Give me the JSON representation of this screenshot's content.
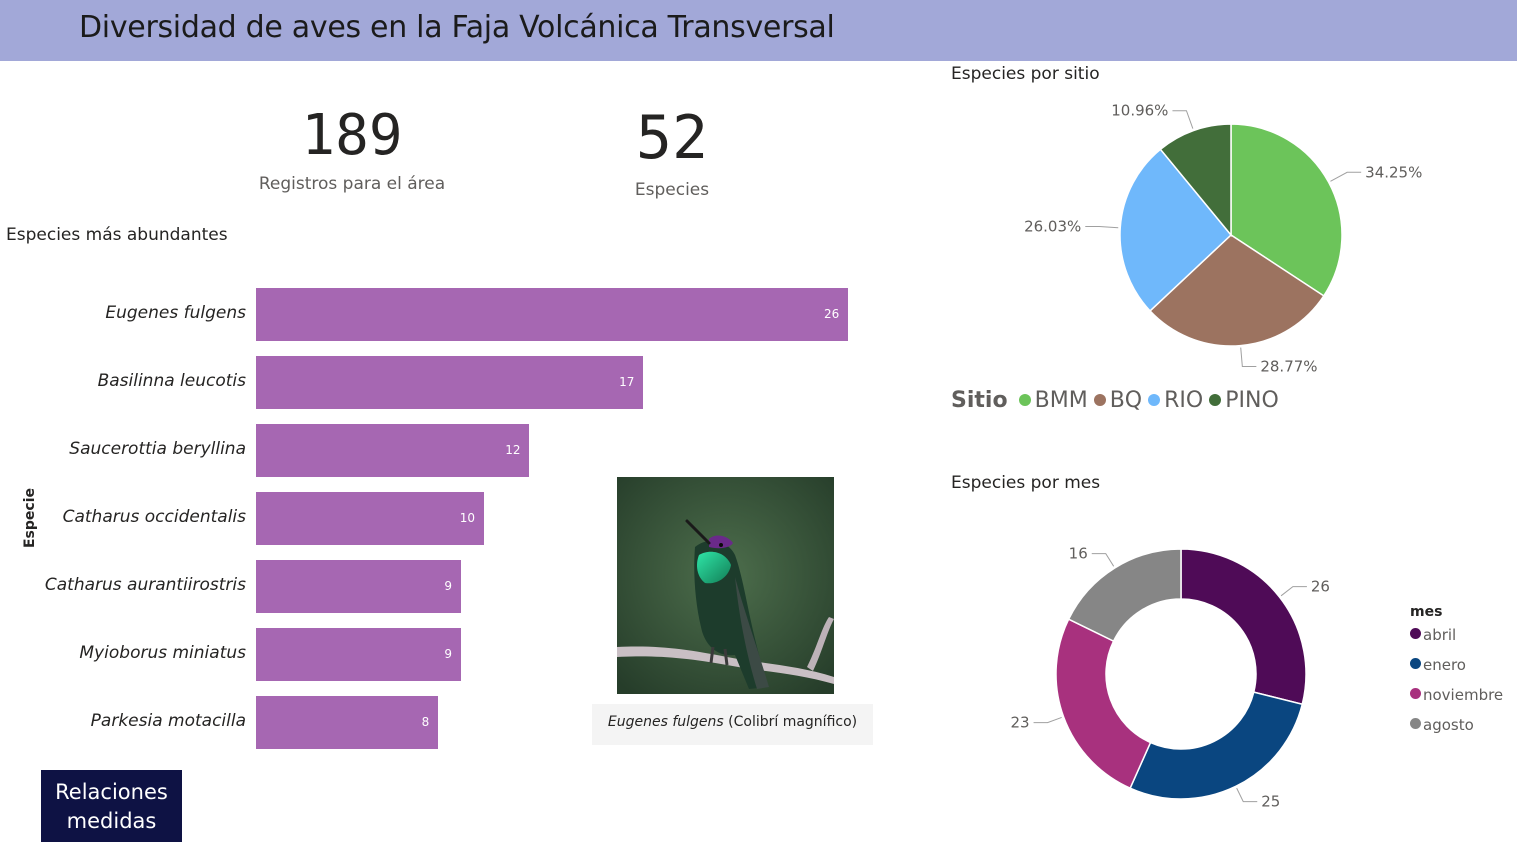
{
  "header": {
    "title": "Diversidad de aves en la Faja Volcánica Transversal"
  },
  "kpis": [
    {
      "value": "189",
      "label": "Registros para el área"
    },
    {
      "value": "52",
      "label": "Especies"
    }
  ],
  "bar_section": {
    "title": "Especies más abundantes",
    "axis_title": "Especie"
  },
  "photo": {
    "caption_italic": "Eugenes fulgens",
    "caption_rest": " (Colibrí magnífico)"
  },
  "button": {
    "label_line1": "Relaciones",
    "label_line2": "medidas"
  },
  "pie_section": {
    "title": "Especies por sitio",
    "legend_title": "Sitio"
  },
  "donut_section": {
    "title": "Especies por mes",
    "legend_title": "mes"
  },
  "chart_data": [
    {
      "type": "bar",
      "orientation": "horizontal",
      "title": "Especies más abundantes",
      "ylabel": "Especie",
      "categories": [
        "Eugenes fulgens",
        "Basilinna leucotis",
        "Saucerottia beryllina",
        "Catharus occidentalis",
        "Catharus aurantiirostris",
        "Myioborus miniatus",
        "Parkesia motacilla"
      ],
      "values": [
        26,
        17,
        12,
        10,
        9,
        9,
        8
      ],
      "color": "#a667b2"
    },
    {
      "type": "pie",
      "title": "Especies por sitio",
      "legend_title": "Sitio",
      "legend_position": "bottom",
      "categories": [
        "BMM",
        "BQ",
        "RIO",
        "PINO"
      ],
      "values": [
        34.25,
        28.77,
        26.03,
        10.96
      ],
      "labels": [
        "34.25%",
        "28.77%",
        "26.03%",
        "10.96%"
      ],
      "colors": [
        "#6cc45a",
        "#9c7360",
        "#6fb8fb",
        "#426e3a"
      ]
    },
    {
      "type": "pie",
      "subtype": "donut",
      "title": "Especies por mes",
      "legend_title": "mes",
      "legend_position": "right",
      "categories": [
        "abril",
        "enero",
        "noviembre",
        "agosto"
      ],
      "values": [
        26,
        25,
        23,
        16
      ],
      "labels": [
        "26",
        "25",
        "23",
        "16"
      ],
      "colors": [
        "#4f0b57",
        "#0a4680",
        "#a8317e",
        "#868686"
      ]
    }
  ]
}
